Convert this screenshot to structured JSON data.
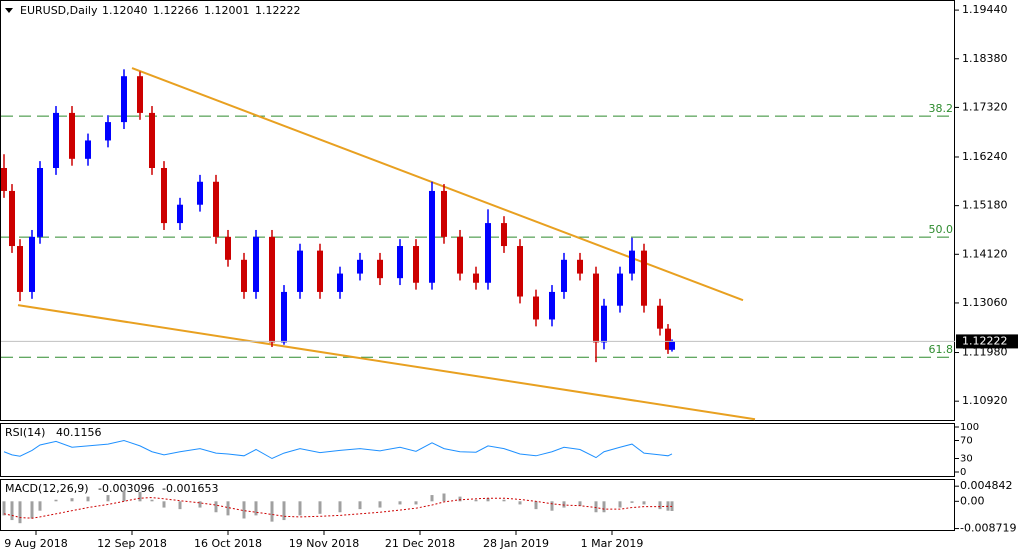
{
  "chart_data": {
    "type": "candlestick",
    "symbol": "EURUSD,Daily",
    "ohlc_labels": [
      "1.12040",
      "1.12266",
      "1.12001",
      "1.12222"
    ],
    "last_price_label": "1.12222",
    "bull_color": "#0000ff",
    "bear_color": "#cc0000",
    "x": [
      1,
      3,
      5,
      8,
      10,
      14,
      18,
      22,
      27,
      31,
      35,
      38,
      41,
      45,
      50,
      54,
      57,
      61,
      64,
      68,
      71,
      75,
      80,
      85,
      90,
      95,
      100,
      104,
      108,
      111,
      115,
      119,
      122,
      126,
      130,
      134,
      138,
      141,
      145,
      149,
      151,
      155,
      158,
      161,
      165,
      167,
      168
    ],
    "open": [
      1.16,
      1.155,
      1.143,
      1.133,
      1.145,
      1.16,
      1.172,
      1.162,
      1.166,
      1.17,
      1.18,
      1.172,
      1.16,
      1.148,
      1.152,
      1.157,
      1.145,
      1.14,
      1.133,
      1.145,
      1.122,
      1.133,
      1.142,
      1.133,
      1.137,
      1.14,
      1.136,
      1.143,
      1.135,
      1.155,
      1.145,
      1.137,
      1.135,
      1.148,
      1.143,
      1.132,
      1.127,
      1.133,
      1.14,
      1.137,
      1.122,
      1.13,
      1.137,
      1.142,
      1.13,
      1.125,
      1.1204
    ],
    "high": [
      1.163,
      1.1565,
      1.1445,
      1.1465,
      1.1615,
      1.1735,
      1.1735,
      1.1675,
      1.1715,
      1.1815,
      1.181,
      1.1735,
      1.1615,
      1.1535,
      1.1585,
      1.1585,
      1.1465,
      1.1415,
      1.1465,
      1.1465,
      1.1345,
      1.1435,
      1.1435,
      1.1385,
      1.1415,
      1.1415,
      1.1445,
      1.1445,
      1.157,
      1.1565,
      1.1465,
      1.1385,
      1.151,
      1.1495,
      1.1445,
      1.1335,
      1.1345,
      1.1415,
      1.1415,
      1.1385,
      1.1315,
      1.1385,
      1.1448,
      1.1435,
      1.1315,
      1.126,
      1.12266
    ],
    "low": [
      1.1535,
      1.1415,
      1.131,
      1.1315,
      1.1435,
      1.1585,
      1.1605,
      1.1605,
      1.1645,
      1.1685,
      1.1705,
      1.1585,
      1.1465,
      1.1465,
      1.1505,
      1.1435,
      1.1385,
      1.1315,
      1.1315,
      1.121,
      1.1215,
      1.1315,
      1.1315,
      1.1315,
      1.1355,
      1.1345,
      1.1345,
      1.1335,
      1.1335,
      1.1435,
      1.1355,
      1.1335,
      1.1335,
      1.1415,
      1.1305,
      1.1255,
      1.1255,
      1.1315,
      1.1355,
      1.1177,
      1.1205,
      1.1285,
      1.1355,
      1.1285,
      1.1235,
      1.1195,
      1.12001
    ],
    "close": [
      1.155,
      1.143,
      1.133,
      1.145,
      1.16,
      1.172,
      1.162,
      1.166,
      1.17,
      1.18,
      1.172,
      1.16,
      1.148,
      1.152,
      1.157,
      1.145,
      1.14,
      1.133,
      1.145,
      1.122,
      1.133,
      1.142,
      1.133,
      1.137,
      1.14,
      1.136,
      1.143,
      1.135,
      1.155,
      1.145,
      1.137,
      1.135,
      1.148,
      1.143,
      1.132,
      1.127,
      1.133,
      1.14,
      1.137,
      1.122,
      1.13,
      1.137,
      1.142,
      1.13,
      1.125,
      1.1204,
      1.12222
    ],
    "xlim": [
      0,
      238.75
    ],
    "xticks": [
      {
        "value": 9,
        "label": "9 Aug 2018"
      },
      {
        "value": 33,
        "label": "12 Sep 2018"
      },
      {
        "value": 57,
        "label": "16 Oct 2018"
      },
      {
        "value": 81,
        "label": "19 Nov 2018"
      },
      {
        "value": 105,
        "label": "21 Dec 2018"
      },
      {
        "value": 129,
        "label": "28 Jan 2019"
      },
      {
        "value": 153,
        "label": "1 Mar 2019"
      }
    ],
    "ylim": [
      1.1051,
      1.1966
    ],
    "yticks": [
      {
        "value": 1.1944,
        "label": "1.19440"
      },
      {
        "value": 1.1838,
        "label": "1.18380"
      },
      {
        "value": 1.1732,
        "label": "1.17320"
      },
      {
        "value": 1.1624,
        "label": "1.16240"
      },
      {
        "value": 1.1518,
        "label": "1.15180"
      },
      {
        "value": 1.1412,
        "label": "1.14120"
      },
      {
        "value": 1.1306,
        "label": "1.13060"
      },
      {
        "value": 1.1198,
        "label": "1.11980"
      },
      {
        "value": 1.1092,
        "label": "1.10920"
      }
    ],
    "fib_levels": [
      {
        "value": 1.1713,
        "label": "38.2"
      },
      {
        "value": 1.14493,
        "label": "50.0"
      },
      {
        "value": 1.11878,
        "label": "61.8"
      }
    ],
    "fib_color": "#2e8b2e",
    "trendlines": [
      {
        "x": [
          33,
          185.75
        ],
        "y": [
          1.18176,
          1.13121
        ]
      },
      {
        "x": [
          4.5,
          188.75
        ],
        "y": [
          1.13012,
          1.10527
        ]
      }
    ],
    "trend_color": "#e8a020",
    "rsi": {
      "title": "RSI(14)",
      "color": "#1e90ff",
      "ylim": [
        0,
        100
      ],
      "yticks": [
        100,
        70,
        30,
        0
      ],
      "values": [
        45,
        38,
        35,
        48,
        60,
        68,
        55,
        58,
        62,
        70,
        58,
        45,
        38,
        45,
        52,
        42,
        40,
        36,
        50,
        30,
        42,
        52,
        43,
        48,
        52,
        47,
        55,
        46,
        65,
        52,
        45,
        44,
        58,
        52,
        40,
        36,
        45,
        55,
        50,
        32,
        45,
        55,
        62,
        42,
        38,
        36,
        40.1156
      ]
    },
    "macd": {
      "title": "MACD(12,26,9)",
      "hist_color": "#a0a0a0",
      "signal_color": "#cc0000",
      "ylim": [
        -0.0095,
        0.0065
      ],
      "yticks": [
        0.004842,
        {
          "value": 0,
          "label": "0.00"
        },
        -0.008719
      ],
      "main": [
        -0.0045,
        -0.006,
        -0.007,
        -0.0055,
        -0.003,
        0.0005,
        0.001,
        0.0015,
        0.002,
        0.0035,
        0.003,
        0.0005,
        -0.002,
        -0.0025,
        -0.002,
        -0.0035,
        -0.0045,
        -0.0055,
        -0.0045,
        -0.0065,
        -0.006,
        -0.0045,
        -0.004,
        -0.0035,
        -0.0025,
        -0.002,
        -0.001,
        -0.001,
        0.002,
        0.0025,
        0.0015,
        0.0005,
        0.001,
        0.0005,
        -0.001,
        -0.0025,
        -0.003,
        -0.002,
        -0.0015,
        -0.0035,
        -0.0035,
        -0.002,
        -0.0005,
        -0.001,
        -0.0025,
        -0.003,
        -0.003096
      ],
      "signal": [
        -0.004,
        -0.0045,
        -0.0052,
        -0.0054,
        -0.005,
        -0.004,
        -0.003,
        -0.002,
        -0.001,
        0.0,
        0.001,
        0.0012,
        0.0008,
        0.0002,
        -0.0005,
        -0.0012,
        -0.002,
        -0.003,
        -0.0035,
        -0.0042,
        -0.0048,
        -0.005,
        -0.0048,
        -0.0045,
        -0.004,
        -0.0035,
        -0.0028,
        -0.0022,
        -0.0012,
        -0.0002,
        0.0005,
        0.0008,
        0.001,
        0.001,
        0.0006,
        0.0,
        -0.0008,
        -0.0012,
        -0.0014,
        -0.002,
        -0.0025,
        -0.0025,
        -0.002,
        -0.0017,
        -0.0017,
        -0.0016,
        -0.001653
      ]
    }
  }
}
